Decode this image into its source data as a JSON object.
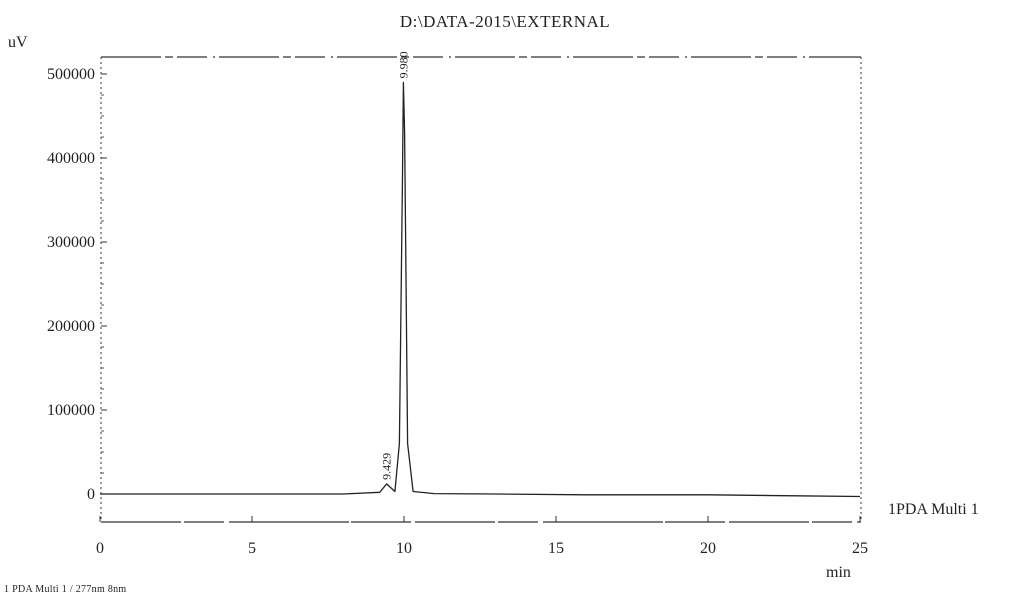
{
  "chart_data": {
    "type": "line",
    "title": "D:\\DATA-2015\\EXTERNAL",
    "ylabel": "uV",
    "xlabel": "min",
    "xlim": [
      0,
      25
    ],
    "ylim": [
      -30000,
      520000
    ],
    "xticks": [
      0,
      5,
      10,
      15,
      20,
      25
    ],
    "yticks": [
      0,
      100000,
      200000,
      300000,
      400000,
      500000
    ],
    "series": [
      {
        "name": "1PDA Multi 1",
        "x": [
          0,
          2,
          4,
          6,
          8,
          9.2,
          9.429,
          9.7,
          9.85,
          9.95,
          9.98,
          10.02,
          10.12,
          10.3,
          11,
          13,
          16,
          20,
          22.5,
          25
        ],
        "y": [
          0,
          0,
          0,
          0,
          0,
          2000,
          12000,
          3000,
          60000,
          380000,
          490000,
          430000,
          60000,
          3000,
          500,
          0,
          -1000,
          -1000,
          -2000,
          -3000
        ]
      }
    ],
    "peak_labels": [
      {
        "x": 9.98,
        "y": 490000,
        "text": "9.980"
      },
      {
        "x": 9.429,
        "y": 12000,
        "text": "9.429"
      }
    ],
    "channel_label": "1PDA Multi 1",
    "footnote": "1  PDA Multi 1 / 277nm 8nm"
  }
}
